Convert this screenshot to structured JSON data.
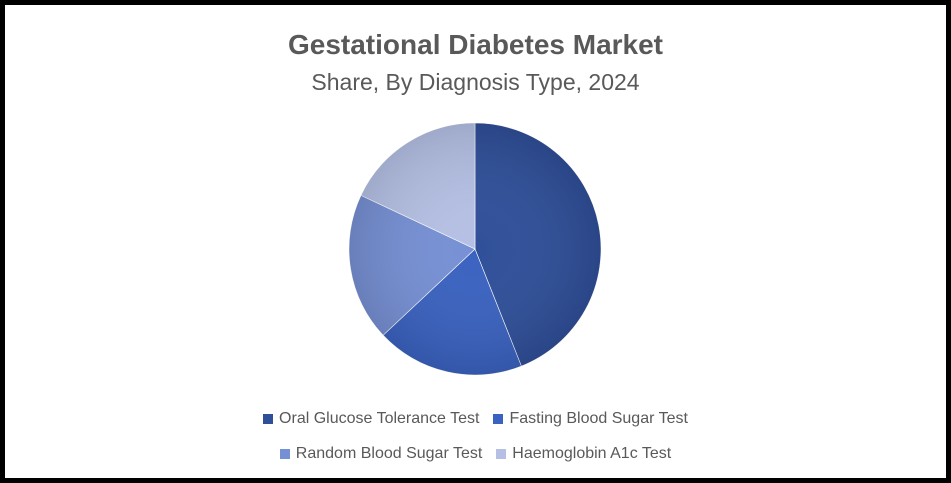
{
  "chart_data": {
    "type": "pie",
    "title": "Gestational Diabetes Market",
    "subtitle": "Share, By Diagnosis Type, 2024",
    "legend_position": "bottom",
    "slices": [
      {
        "label": "Oral Glucose Tolerance Test",
        "value": 44,
        "color": "#2f4f99"
      },
      {
        "label": "Fasting Blood Sugar Test",
        "value": 19,
        "color": "#3a62c0"
      },
      {
        "label": "Random Blood Sugar Test",
        "value": 19,
        "color": "#7690d4"
      },
      {
        "label": "Haemoglobin A1c Test",
        "value": 18,
        "color": "#b5c0e4"
      }
    ]
  }
}
